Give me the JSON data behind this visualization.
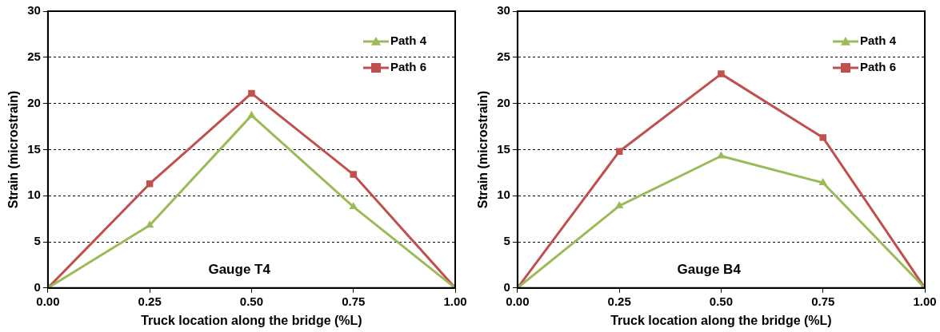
{
  "chart_data": [
    {
      "type": "line",
      "xlabel": "Truck location along the bridge (%L)",
      "ylabel": "Strain (microstrain)",
      "annotations": [
        "Gauge T4"
      ],
      "x": [
        0,
        0.25,
        0.5,
        0.75,
        1
      ],
      "xlim": [
        0,
        1
      ],
      "xticks": [
        {
          "value": 0,
          "label": "0.00"
        },
        {
          "value": 0.25,
          "label": "0.25"
        },
        {
          "value": 0.5,
          "label": "0.50"
        },
        {
          "value": 0.75,
          "label": "0.75"
        },
        {
          "value": 1,
          "label": "1.00"
        }
      ],
      "ylim": [
        0,
        30
      ],
      "yticks": [
        0,
        5,
        10,
        15,
        20,
        25,
        30
      ],
      "grid": "y",
      "legend": "top right",
      "line_style": "solid",
      "series": [
        {
          "name": "Path 4",
          "color": "#9bbb59",
          "marker": "triangle",
          "values": [
            0,
            6.8,
            18.7,
            8.8,
            0
          ]
        },
        {
          "name": "Path 6",
          "color": "#c0504d",
          "marker": "square",
          "values": [
            0,
            11.3,
            21.1,
            12.3,
            0
          ]
        }
      ]
    },
    {
      "type": "line",
      "xlabel": "Truck location along the bridge (%L)",
      "ylabel": "Strain (microstrain)",
      "annotations": [
        "Gauge B4"
      ],
      "x": [
        0,
        0.25,
        0.5,
        0.75,
        1
      ],
      "xlim": [
        0,
        1
      ],
      "xticks": [
        {
          "value": 0,
          "label": "0.00"
        },
        {
          "value": 0.25,
          "label": "0.25"
        },
        {
          "value": 0.5,
          "label": "0.50"
        },
        {
          "value": 0.75,
          "label": "0.75"
        },
        {
          "value": 1,
          "label": "1.00"
        }
      ],
      "ylim": [
        0,
        30
      ],
      "yticks": [
        0,
        5,
        10,
        15,
        20,
        25,
        30
      ],
      "grid": "y",
      "legend": "top right",
      "line_style": "solid",
      "series": [
        {
          "name": "Path 4",
          "color": "#9bbb59",
          "marker": "triangle",
          "values": [
            0,
            8.9,
            14.3,
            11.4,
            0
          ]
        },
        {
          "name": "Path 6",
          "color": "#c0504d",
          "marker": "square",
          "values": [
            0,
            14.8,
            23.2,
            16.3,
            0
          ]
        }
      ]
    }
  ]
}
